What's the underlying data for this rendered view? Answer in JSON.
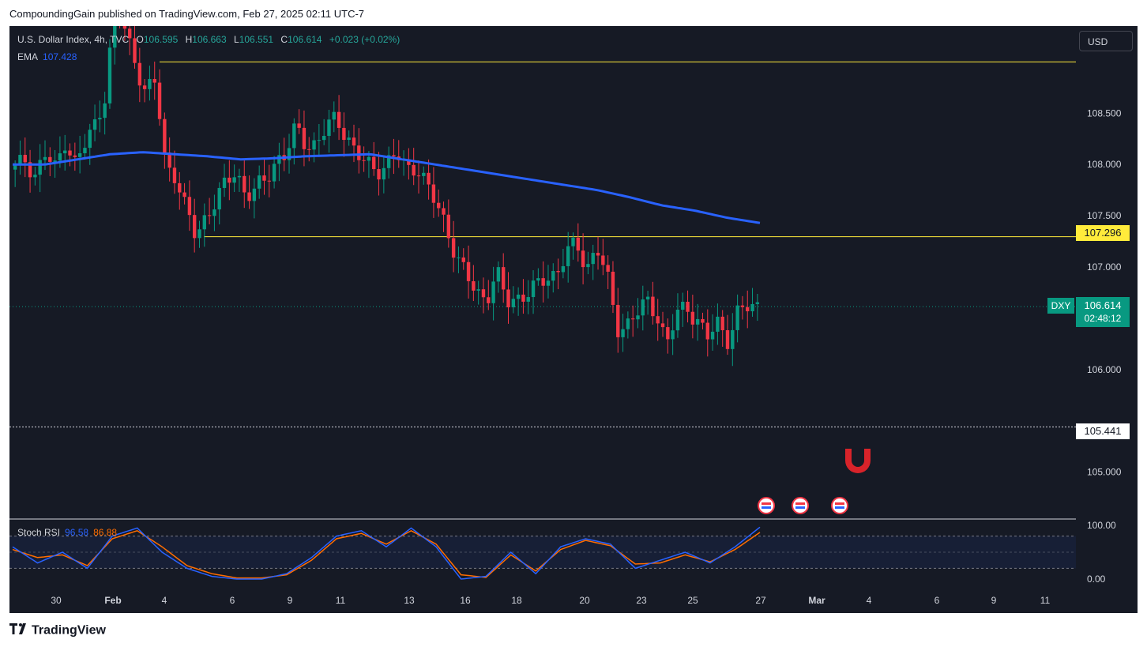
{
  "publisher_line": "CompoundingGain published on TradingView.com, Feb 27, 2025 02:11 UTC-7",
  "legend": {
    "title": "U.S. Dollar Index, 4h, TVC",
    "o_label": "O",
    "o_value": "106.595",
    "h_label": "H",
    "h_value": "106.663",
    "l_label": "L",
    "l_value": "106.551",
    "c_label": "C",
    "c_value": "106.614",
    "change": "+0.023 (+0.02%)"
  },
  "ema": {
    "label": "EMA",
    "value": "107.428"
  },
  "stoch": {
    "label": "Stoch RSI",
    "k": "96.58",
    "d": "86.88"
  },
  "currency_button": "USD",
  "tags": {
    "support_level": "107.296",
    "dashed_level": "105.441",
    "symbol": "DXY",
    "last_price": "106.614",
    "countdown": "02:48:12"
  },
  "brand": "TradingView",
  "colors": {
    "up": "#089981",
    "down": "#f23645",
    "ema": "#2962ff",
    "stoch_k": "#2962ff",
    "stoch_d": "#ff6d00",
    "level": "#ffeb3b"
  },
  "chart_data": {
    "type": "candlestick",
    "title": "U.S. Dollar Index, 4h, TVC",
    "price_axis": {
      "ticks": [
        "108.500",
        "108.000",
        "107.500",
        "107.000",
        "106.000",
        "105.000"
      ],
      "range": [
        104.55,
        109.35
      ]
    },
    "time_axis": {
      "ticks": [
        "30",
        "Feb",
        "4",
        "6",
        "9",
        "11",
        "13",
        "16",
        "18",
        "20",
        "23",
        "25",
        "27",
        "Mar",
        "4",
        "6",
        "9",
        "11"
      ]
    },
    "horizontal_levels": [
      109.0,
      107.296,
      105.441
    ],
    "close_path": [
      107.95,
      108.05,
      107.9,
      108.1,
      107.95,
      108.25,
      108.0,
      108.2,
      108.4,
      108.7,
      109.6,
      109.3,
      109.0,
      108.7,
      108.8,
      108.0,
      107.9,
      107.55,
      107.3,
      107.5,
      107.65,
      107.8,
      107.95,
      107.7,
      107.75,
      107.85,
      108.05,
      108.1,
      108.35,
      108.2,
      108.2,
      108.35,
      108.45,
      108.3,
      108.1,
      108.0,
      107.95,
      108.0,
      108.1,
      107.95,
      108.0,
      107.8,
      107.6,
      107.4,
      107.1,
      106.9,
      106.75,
      106.7,
      106.95,
      106.65,
      106.7,
      106.75,
      106.8,
      106.9,
      106.95,
      107.15,
      107.2,
      107.0,
      107.2,
      106.9,
      106.4,
      106.45,
      106.55,
      106.65,
      106.55,
      106.25,
      106.55,
      106.6,
      106.5,
      106.3,
      106.45,
      106.3,
      106.55,
      106.6,
      106.614
    ],
    "ema_path": [
      108.0,
      108.0,
      108.05,
      108.1,
      108.12,
      108.1,
      108.08,
      108.05,
      108.06,
      108.08,
      108.09,
      108.1,
      108.05,
      108.0,
      107.95,
      107.9,
      107.85,
      107.8,
      107.75,
      107.68,
      107.6,
      107.55,
      107.48,
      107.43
    ],
    "stoch_rsi": {
      "ticks": [
        "100.00",
        "0.00"
      ],
      "band": [
        80,
        20
      ],
      "k_path": [
        60,
        30,
        50,
        20,
        80,
        95,
        50,
        20,
        5,
        0,
        0,
        10,
        40,
        80,
        90,
        60,
        95,
        60,
        0,
        5,
        50,
        10,
        60,
        75,
        65,
        20,
        35,
        50,
        30,
        60,
        96.58
      ],
      "d_path": [
        55,
        40,
        45,
        25,
        75,
        90,
        60,
        25,
        10,
        2,
        2,
        8,
        35,
        75,
        85,
        65,
        90,
        65,
        8,
        3,
        45,
        15,
        55,
        72,
        62,
        28,
        30,
        45,
        32,
        55,
        86.88
      ]
    }
  }
}
